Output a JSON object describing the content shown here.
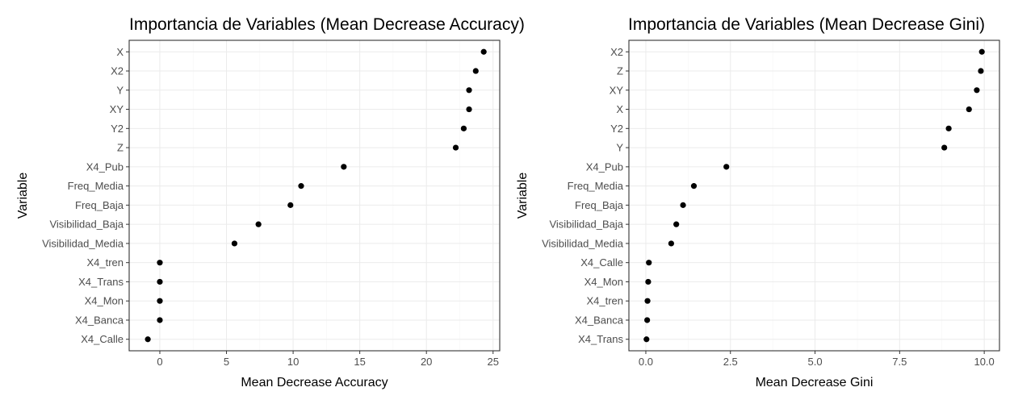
{
  "chart_data": [
    {
      "type": "scatter",
      "title": "Importancia de Variables (Mean Decrease Accuracy)",
      "xlabel": "Mean Decrease Accuracy",
      "ylabel": "Variable",
      "xlim": [
        -2.3,
        25.5
      ],
      "xticks": [
        0,
        5,
        10,
        15,
        20,
        25
      ],
      "xtick_labels": [
        "0",
        "5",
        "10",
        "15",
        "20",
        "25"
      ],
      "categories": [
        "X",
        "X2",
        "Y",
        "XY",
        "Y2",
        "Z",
        "X4_Pub",
        "Freq_Media",
        "Freq_Baja",
        "Visibilidad_Baja",
        "Visibilidad_Media",
        "X4_tren",
        "X4_Trans",
        "X4_Mon",
        "X4_Banca",
        "X4_Calle"
      ],
      "values": [
        24.3,
        23.7,
        23.2,
        23.2,
        22.8,
        22.2,
        13.8,
        10.6,
        9.8,
        7.4,
        5.6,
        0.0,
        0.0,
        0.0,
        0.0,
        -0.9
      ],
      "grid": true
    },
    {
      "type": "scatter",
      "title": "Importancia de Variables (Mean Decrease Gini)",
      "xlabel": "Mean Decrease Gini",
      "ylabel": "Variable",
      "xlim": [
        -0.5,
        10.45
      ],
      "xticks": [
        0,
        2.5,
        5,
        7.5,
        10
      ],
      "xtick_labels": [
        "0.0",
        "2.5",
        "5.0",
        "7.5",
        "10.0"
      ],
      "categories": [
        "X2",
        "Z",
        "XY",
        "X",
        "Y2",
        "Y",
        "X4_Pub",
        "Freq_Media",
        "Freq_Baja",
        "Visibilidad_Baja",
        "Visibilidad_Media",
        "X4_Calle",
        "X4_Mon",
        "X4_tren",
        "X4_Banca",
        "X4_Trans"
      ],
      "values": [
        9.93,
        9.9,
        9.78,
        9.55,
        8.95,
        8.82,
        2.38,
        1.42,
        1.1,
        0.9,
        0.75,
        0.09,
        0.07,
        0.05,
        0.04,
        0.02
      ],
      "grid": true
    }
  ]
}
